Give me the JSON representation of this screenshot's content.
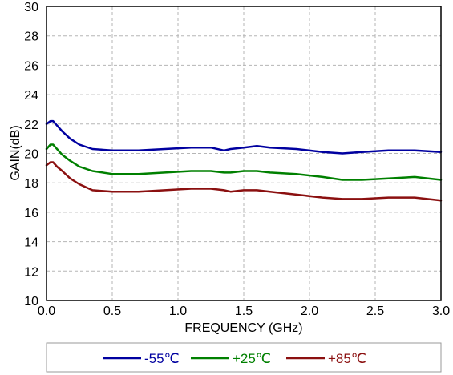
{
  "chart_data": {
    "type": "line",
    "xlabel": "FREQUENCY (GHz)",
    "ylabel": "GAIN(dB)",
    "xlim": [
      0,
      3.0
    ],
    "ylim": [
      10,
      30
    ],
    "x_ticks": [
      "0.0",
      "0.5",
      "1.0",
      "1.5",
      "2.0",
      "2.5",
      "3.0"
    ],
    "y_ticks": [
      "10",
      "12",
      "14",
      "16",
      "18",
      "20",
      "22",
      "24",
      "26",
      "28",
      "30"
    ],
    "grid": true,
    "legend_position": "bottom",
    "series": [
      {
        "name": "-55℃",
        "color": "#0000a0",
        "x": [
          0,
          0.03,
          0.05,
          0.08,
          0.12,
          0.18,
          0.25,
          0.35,
          0.5,
          0.7,
          0.9,
          1.1,
          1.25,
          1.35,
          1.4,
          1.5,
          1.6,
          1.7,
          1.9,
          2.1,
          2.25,
          2.4,
          2.6,
          2.8,
          3.0
        ],
        "y": [
          22.0,
          22.2,
          22.2,
          21.9,
          21.5,
          21.0,
          20.6,
          20.3,
          20.2,
          20.2,
          20.3,
          20.4,
          20.4,
          20.2,
          20.3,
          20.4,
          20.5,
          20.4,
          20.3,
          20.1,
          20.0,
          20.1,
          20.2,
          20.2,
          20.1
        ]
      },
      {
        "name": "+25℃",
        "color": "#008000",
        "x": [
          0,
          0.03,
          0.05,
          0.08,
          0.12,
          0.18,
          0.25,
          0.35,
          0.5,
          0.7,
          0.9,
          1.1,
          1.25,
          1.35,
          1.4,
          1.5,
          1.6,
          1.7,
          1.9,
          2.1,
          2.25,
          2.4,
          2.6,
          2.8,
          3.0
        ],
        "y": [
          20.3,
          20.6,
          20.6,
          20.3,
          19.9,
          19.5,
          19.1,
          18.8,
          18.6,
          18.6,
          18.7,
          18.8,
          18.8,
          18.7,
          18.7,
          18.8,
          18.8,
          18.7,
          18.6,
          18.4,
          18.2,
          18.2,
          18.3,
          18.4,
          18.2
        ]
      },
      {
        "name": "+85℃",
        "color": "#8b1010",
        "x": [
          0,
          0.03,
          0.05,
          0.08,
          0.12,
          0.18,
          0.25,
          0.35,
          0.5,
          0.7,
          0.9,
          1.1,
          1.25,
          1.35,
          1.4,
          1.5,
          1.6,
          1.7,
          1.9,
          2.1,
          2.25,
          2.4,
          2.6,
          2.8,
          3.0
        ],
        "y": [
          19.2,
          19.4,
          19.4,
          19.1,
          18.8,
          18.3,
          17.9,
          17.5,
          17.4,
          17.4,
          17.5,
          17.6,
          17.6,
          17.5,
          17.4,
          17.5,
          17.5,
          17.4,
          17.2,
          17.0,
          16.9,
          16.9,
          17.0,
          17.0,
          16.8
        ]
      }
    ]
  }
}
